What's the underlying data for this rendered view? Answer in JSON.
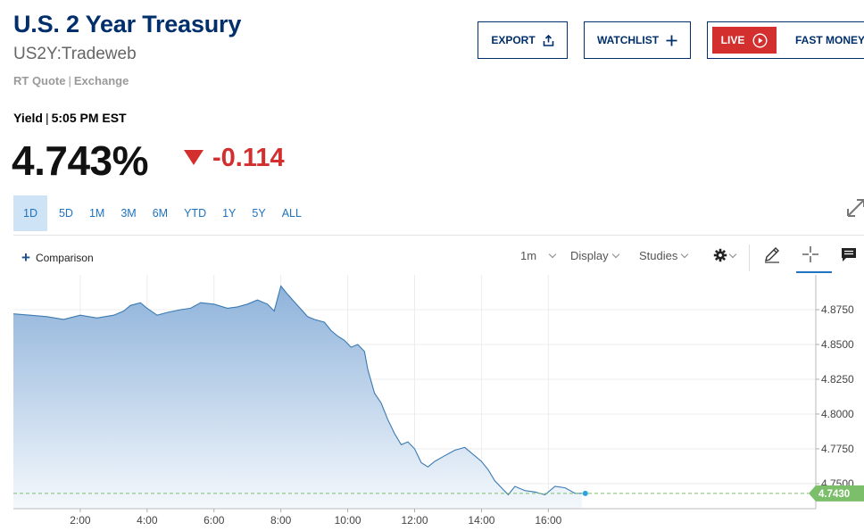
{
  "header": {
    "title": "U.S. 2 Year Treasury",
    "symbol": "US2Y:Tradeweb",
    "quote_type": "RT Quote",
    "quote_exchange": "Exchange"
  },
  "actions": {
    "export_label": "EXPORT",
    "watchlist_label": "WATCHLIST",
    "live_label": "LIVE",
    "live_show": "FAST MONEY"
  },
  "quote": {
    "label": "Yield",
    "time": "5:05 PM EST",
    "value": "4.743%",
    "change": "-0.114",
    "direction": "down"
  },
  "ranges": [
    "1D",
    "5D",
    "1M",
    "3M",
    "6M",
    "YTD",
    "1Y",
    "5Y",
    "ALL"
  ],
  "active_range": "1D",
  "toolbar": {
    "comparison_label": "Comparison",
    "interval_label": "1m",
    "display_label": "Display",
    "studies_label": "Studies"
  },
  "colors": {
    "brand_navy": "#002f6c",
    "accent_blue": "#1e72bf",
    "down_red": "#d32f2f",
    "last_price_green": "#7cbf6a"
  },
  "icons": [
    "share-icon",
    "plus-icon",
    "play-circle-icon",
    "expand-icon",
    "gear-icon",
    "pencil-icon",
    "crosshair-icon",
    "comment-icon"
  ],
  "chart_data": {
    "type": "area",
    "x_ticks": [
      "2:00",
      "4:00",
      "6:00",
      "8:00",
      "10:00",
      "12:00",
      "14:00",
      "16:00"
    ],
    "y_ticks": [
      "4.8750",
      "4.8500",
      "4.8250",
      "4.8000",
      "4.7750",
      "4.7500"
    ],
    "ylim": [
      4.732,
      4.9
    ],
    "xlim_hours": [
      0.0,
      24.0
    ],
    "last_value_label": "4.7430",
    "grid": true,
    "series": [
      {
        "x": [
          0.0,
          0.5,
          1.0,
          1.5,
          2.0,
          2.5,
          3.0,
          3.3,
          3.5,
          3.8,
          4.0,
          4.3,
          4.6,
          5.0,
          5.3,
          5.6,
          6.0,
          6.4,
          6.7,
          7.0,
          7.3,
          7.6,
          7.8,
          8.0,
          8.2,
          8.5,
          8.8,
          9.0,
          9.3,
          9.5,
          9.7,
          9.9,
          10.1,
          10.3,
          10.5,
          10.6,
          10.8,
          11.0,
          11.2,
          11.4,
          11.6,
          11.8,
          12.0,
          12.2,
          12.4,
          12.6,
          12.9,
          13.2,
          13.5,
          13.8,
          14.0,
          14.2,
          14.4,
          14.6,
          14.8,
          15.0,
          15.3,
          15.6,
          15.9,
          16.2,
          16.5,
          16.8,
          17.0
        ],
        "y": [
          4.872,
          4.871,
          4.87,
          4.868,
          4.871,
          4.869,
          4.871,
          4.874,
          4.878,
          4.88,
          4.876,
          4.871,
          4.873,
          4.875,
          4.876,
          4.88,
          4.879,
          4.876,
          4.877,
          4.879,
          4.882,
          4.879,
          4.874,
          4.892,
          4.886,
          4.878,
          4.87,
          4.868,
          4.866,
          4.86,
          4.856,
          4.853,
          4.848,
          4.85,
          4.845,
          4.832,
          4.815,
          4.808,
          4.796,
          4.786,
          4.778,
          4.78,
          4.775,
          4.765,
          4.762,
          4.766,
          4.77,
          4.774,
          4.776,
          4.77,
          4.766,
          4.76,
          4.752,
          4.747,
          4.742,
          4.748,
          4.745,
          4.744,
          4.742,
          4.748,
          4.747,
          4.743,
          4.743
        ]
      }
    ]
  }
}
